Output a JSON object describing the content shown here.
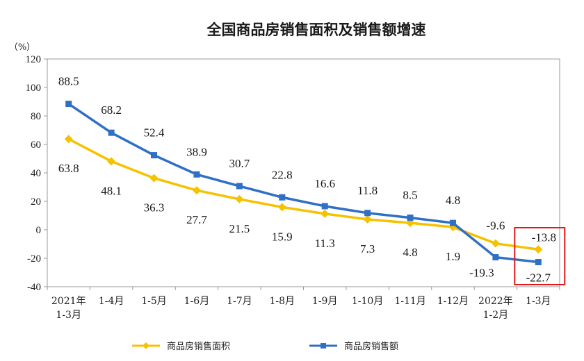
{
  "chart_data": {
    "type": "line",
    "title": "全国商品房销售面积及销售额增速",
    "ylabel": "（%）",
    "ylim": [
      -40,
      120
    ],
    "yticks": [
      -40,
      -20,
      0,
      20,
      40,
      60,
      80,
      100,
      120
    ],
    "categories": [
      [
        "2021年",
        "1-3月"
      ],
      [
        "1-4月"
      ],
      [
        "1-5月"
      ],
      [
        "1-6月"
      ],
      [
        "1-7月"
      ],
      [
        "1-8月"
      ],
      [
        "1-9月"
      ],
      [
        "1-10月"
      ],
      [
        "1-11月"
      ],
      [
        "1-12月"
      ],
      [
        "2022年",
        "1-2月"
      ],
      [
        "1-3月"
      ]
    ],
    "series": [
      {
        "name": "商品房销售面积",
        "color": "#f5c200",
        "marker": "diamond",
        "values": [
          63.8,
          48.1,
          36.3,
          27.7,
          21.5,
          15.9,
          11.3,
          7.3,
          4.8,
          1.9,
          -9.6,
          -13.8
        ],
        "labels": [
          "63.8",
          "48.1",
          "36.3",
          "27.7",
          "21.5",
          "15.9",
          "11.3",
          "7.3",
          "4.8",
          "1.9",
          "-9.6",
          "-13.8"
        ]
      },
      {
        "name": "商品房销售额",
        "color": "#2f6fc6",
        "marker": "square",
        "values": [
          88.5,
          68.2,
          52.4,
          38.9,
          30.7,
          22.8,
          16.6,
          11.8,
          8.5,
          4.8,
          -19.3,
          -22.7
        ],
        "labels": [
          "88.5",
          "68.2",
          "52.4",
          "38.9",
          "30.7",
          "22.8",
          "16.6",
          "11.8",
          "8.5",
          "4.8",
          "-19.3",
          "-22.7"
        ]
      }
    ],
    "highlight": {
      "category_index": 11,
      "color": "#e0191b"
    },
    "legend": "bottom",
    "grid": false
  }
}
